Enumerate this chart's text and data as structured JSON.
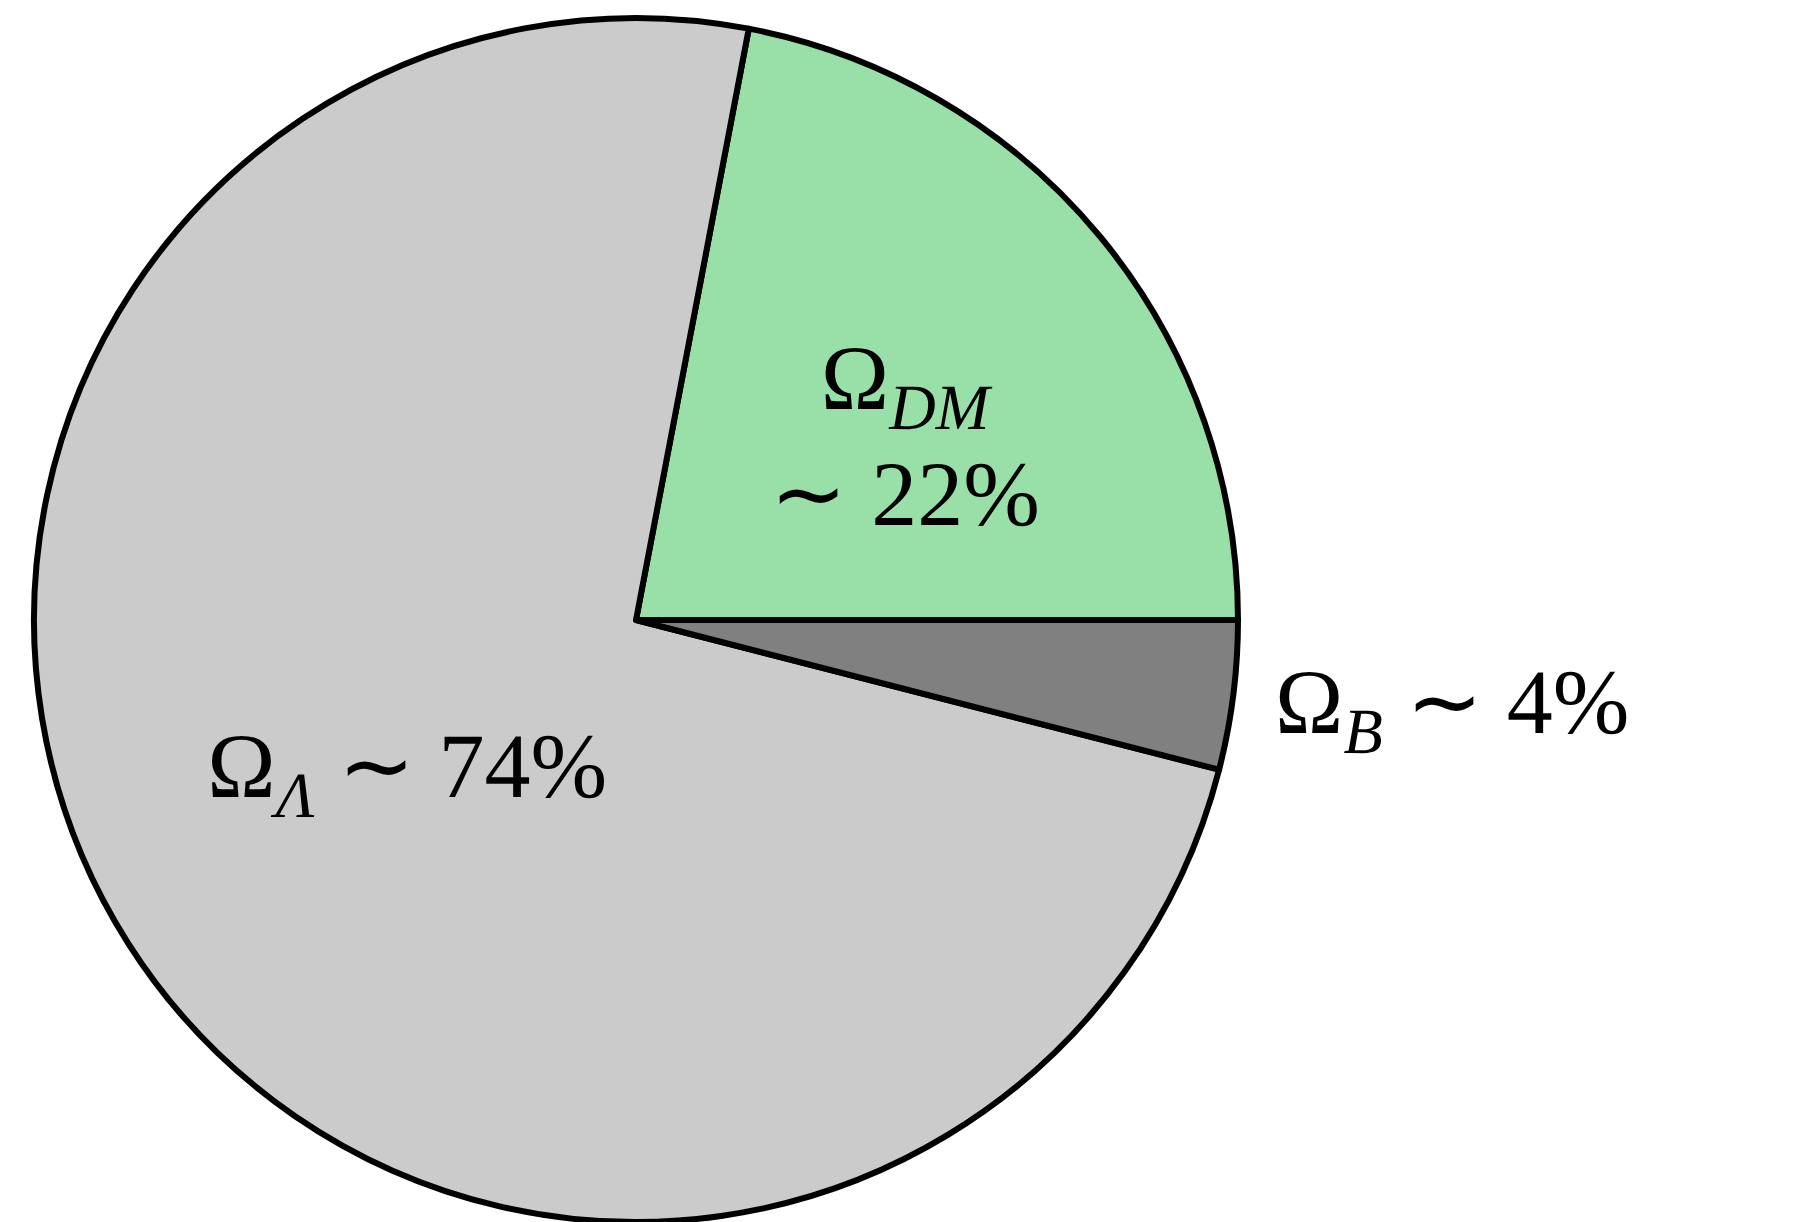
{
  "chart_data": {
    "type": "pie",
    "categories": [
      "Ω$_{DM}$",
      "Ω$_{Λ}$",
      "Ω$_{B}$"
    ],
    "values": [
      22,
      74,
      4
    ],
    "colors": [
      "#98e0a8",
      "#cbcbcb",
      "#808080"
    ],
    "value_labels": [
      "∼ 22%",
      "∼ 74%",
      "∼ 4%"
    ]
  }
}
